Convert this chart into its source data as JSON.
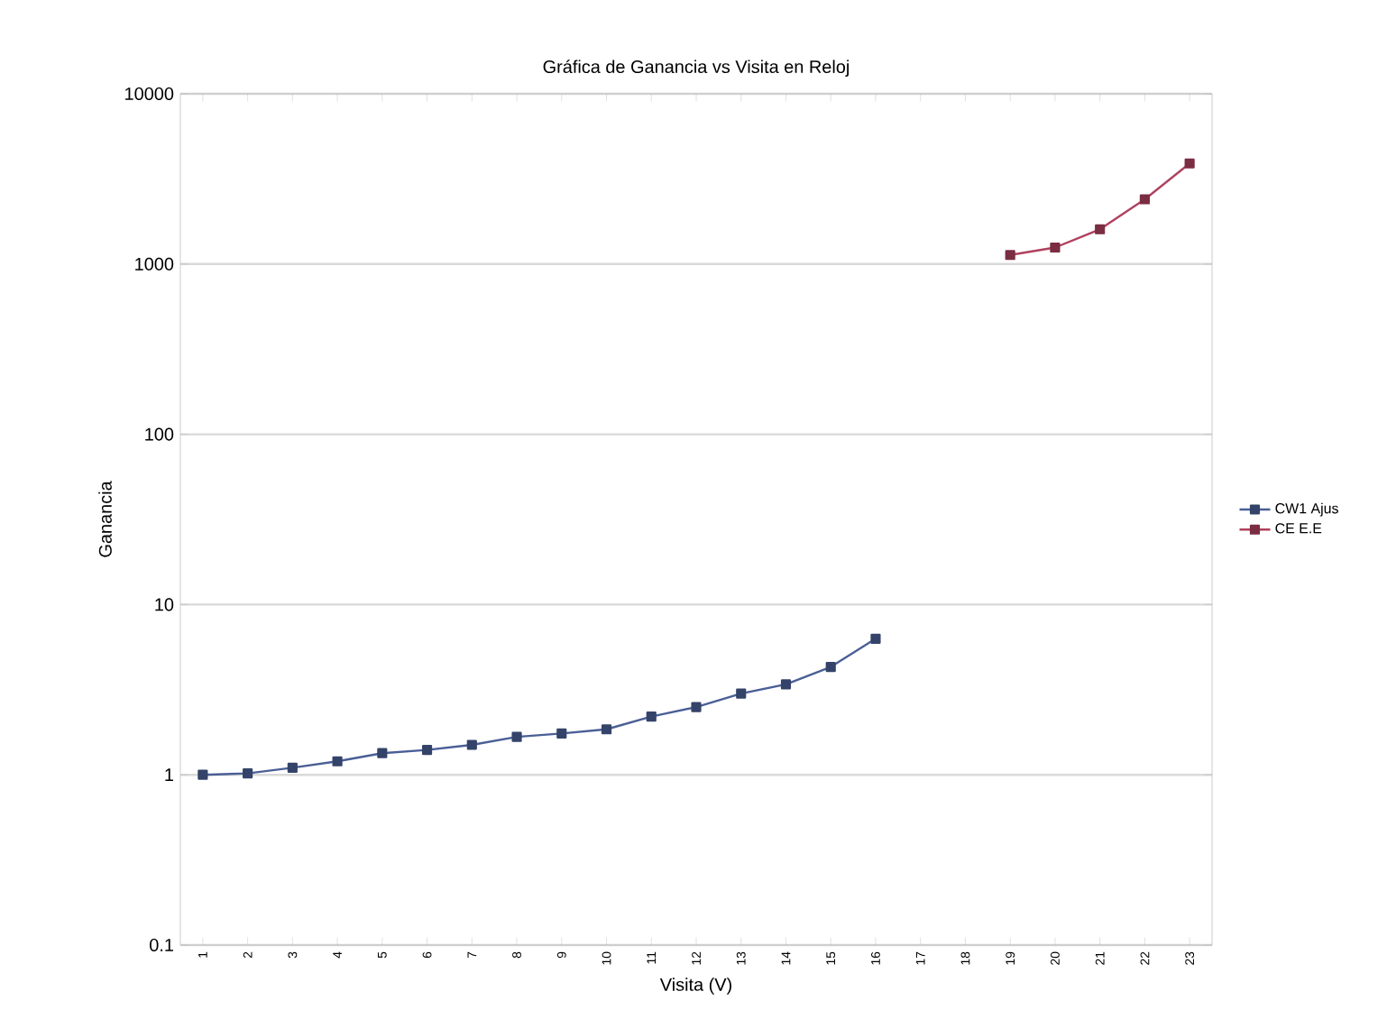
{
  "chart_data": {
    "type": "line",
    "title": "Gráfica de Ganancia vs Visita en Reloj",
    "xlabel": "Visita (V)",
    "ylabel": "Ganancia",
    "categories": [
      "1",
      "2",
      "3",
      "4",
      "5",
      "6",
      "7",
      "8",
      "9",
      "10",
      "11",
      "12",
      "13",
      "14",
      "15",
      "16",
      "17",
      "18",
      "19",
      "20",
      "21",
      "22",
      "23"
    ],
    "series": [
      {
        "name": "CW1 Ajus",
        "color": "#4a5f96",
        "values": [
          1.0,
          1.02,
          1.1,
          1.2,
          1.34,
          1.4,
          1.5,
          1.67,
          1.75,
          1.85,
          2.2,
          2.5,
          3.0,
          3.4,
          4.3,
          6.3,
          null,
          null,
          null,
          null,
          null,
          null,
          null
        ]
      },
      {
        "name": "CE E.E",
        "color": "#b0405e",
        "values": [
          null,
          null,
          null,
          null,
          null,
          null,
          null,
          null,
          null,
          null,
          null,
          null,
          null,
          null,
          null,
          null,
          null,
          null,
          1130,
          1250,
          1600,
          2400,
          3900
        ]
      }
    ],
    "log": "y",
    "ylim": [
      0.1,
      10000
    ],
    "yticks": [
      0.1,
      1,
      10,
      100,
      1000,
      10000
    ],
    "grid": "y",
    "legend": "right",
    "marker": "square",
    "line_style": "solid"
  }
}
